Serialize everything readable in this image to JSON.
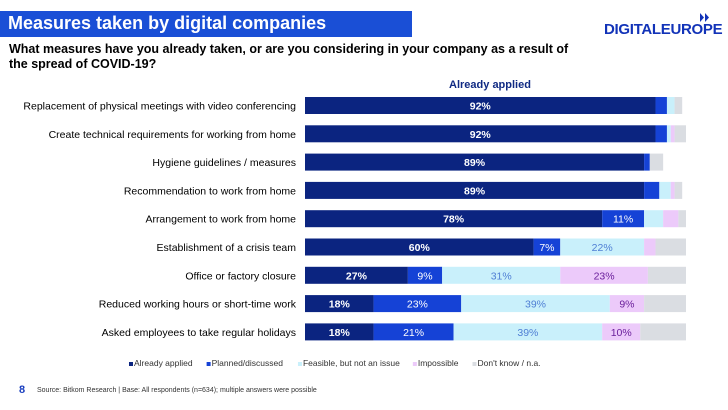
{
  "header": {
    "title": "Measures taken by digital companies",
    "logo": "DIGITALEUROPE",
    "question": "What measures have you already taken, or are you considering in your company as a result of the spread of COVID-19?",
    "series_header": "Already applied"
  },
  "footer": {
    "page": "8",
    "source": "Source: Bitkom Research | Base: All respondents (n=634); multiple answers were possible"
  },
  "colors": {
    "title_bar": "#1a4fd6",
    "logo": "#1233b8"
  },
  "chart_data": {
    "type": "bar",
    "orientation": "horizontal",
    "stacked": true,
    "xlim": [
      0,
      100
    ],
    "unit": "%",
    "grid": false,
    "legend_position": "bottom",
    "categories": [
      "Replacement of physical meetings with video conferencing",
      "Create technical requirements for working from home",
      "Hygiene guidelines / measures",
      "Recommendation to work from home",
      "Arrangement to work from home",
      "Establishment of a crisis team",
      "Office or factory closure",
      "Reduced working hours or short-time work",
      "Asked employees to take regular holidays"
    ],
    "series": [
      {
        "name": "Already applied",
        "color": "#0b2480",
        "label_color": "#ffffff",
        "values": [
          92,
          92,
          89,
          89,
          78,
          60,
          27,
          18,
          18
        ],
        "labels": [
          "92%",
          "92%",
          "89%",
          "89%",
          "78%",
          "60%",
          "27%",
          "18%",
          "18%"
        ]
      },
      {
        "name": "Planned/discussed",
        "color": "#1542d6",
        "label_color": "#ffffff",
        "values": [
          3,
          3,
          1.5,
          4,
          11,
          7,
          9,
          23,
          21
        ],
        "labels": [
          "",
          "",
          "",
          "",
          "11%",
          "7%",
          "9%",
          "23%",
          "21%"
        ]
      },
      {
        "name": "Feasible, but not an issue",
        "color": "#c9f0fb",
        "label_color": "#4f7fd4",
        "values": [
          2,
          1,
          0,
          3,
          5,
          22,
          31,
          39,
          39
        ],
        "labels": [
          "",
          "",
          "",
          "",
          "",
          "22%",
          "31%",
          "39%",
          "39%"
        ]
      },
      {
        "name": "Impossible",
        "color": "#eccafa",
        "label_color": "#6a1f9b",
        "values": [
          0,
          1,
          0,
          1,
          4,
          3,
          23,
          9,
          10
        ],
        "labels": [
          "",
          "",
          "",
          "",
          "",
          "",
          "23%",
          "9%",
          "10%"
        ]
      },
      {
        "name": "Don't know / n.a.",
        "color": "#dadde2",
        "label_color": "#555555",
        "values": [
          2,
          3,
          3.5,
          2,
          2,
          8,
          10,
          11,
          12
        ],
        "labels": [
          "",
          "",
          "",
          "",
          "",
          "",
          "",
          "",
          ""
        ]
      }
    ]
  }
}
